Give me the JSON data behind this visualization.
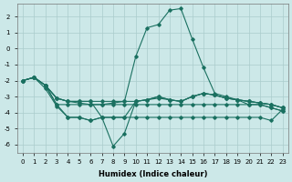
{
  "xlabel": "Humidex (Indice chaleur)",
  "bg_color": "#cce8e8",
  "grid_color": "#aacccc",
  "line_color": "#1a7060",
  "xlim": [
    -0.5,
    23.5
  ],
  "ylim": [
    -6.5,
    2.8
  ],
  "xticks": [
    0,
    1,
    2,
    3,
    4,
    5,
    6,
    7,
    8,
    9,
    10,
    11,
    12,
    13,
    14,
    15,
    16,
    17,
    18,
    19,
    20,
    21,
    22,
    23
  ],
  "yticks": [
    -6,
    -5,
    -4,
    -3,
    -2,
    -1,
    0,
    1,
    2
  ],
  "lines": [
    {
      "x": [
        0,
        1,
        2,
        3,
        4,
        5,
        6,
        7,
        8,
        9,
        10,
        11,
        12,
        13,
        14,
        15,
        16,
        17,
        18,
        19,
        20,
        21,
        22,
        23
      ],
      "y": [
        -2.0,
        -1.8,
        -2.3,
        -3.1,
        -3.3,
        -3.4,
        -3.5,
        -3.5,
        -3.4,
        -3.3,
        -3.3,
        -3.2,
        -3.1,
        -3.2,
        -3.3,
        -3.0,
        -2.8,
        -2.9,
        -3.1,
        -3.2,
        -3.3,
        -3.4,
        -3.5,
        -3.7
      ]
    },
    {
      "x": [
        0,
        1,
        2,
        3,
        4,
        5,
        6,
        7,
        8,
        9,
        10,
        11,
        12,
        13,
        14,
        15,
        16,
        17,
        18,
        19,
        20,
        21,
        22,
        23
      ],
      "y": [
        -2.0,
        -1.8,
        -2.3,
        -3.5,
        -3.5,
        -3.5,
        -3.5,
        -3.5,
        -3.5,
        -3.5,
        -3.5,
        -3.5,
        -3.5,
        -3.5,
        -3.5,
        -3.5,
        -3.5,
        -3.5,
        -3.5,
        -3.5,
        -3.5,
        -3.5,
        -3.7,
        -3.9
      ]
    },
    {
      "x": [
        2,
        3,
        4,
        5,
        6,
        7,
        8,
        9,
        10,
        11,
        12,
        13,
        14,
        15,
        16,
        17,
        18,
        19,
        20,
        21,
        22,
        23
      ],
      "y": [
        -2.3,
        -3.5,
        -4.3,
        -4.3,
        -4.5,
        -4.3,
        -4.3,
        -4.3,
        -4.3,
        -4.3,
        -4.3,
        -4.3,
        -4.3,
        -4.3,
        -4.3,
        -4.3,
        -4.3,
        -4.3,
        -4.3,
        -4.3,
        -4.5,
        -3.8
      ]
    },
    {
      "x": [
        0,
        1,
        2,
        3,
        4,
        5,
        6,
        7,
        8,
        9,
        10,
        11,
        12,
        13,
        14,
        15,
        16,
        17,
        18,
        19,
        20,
        21,
        22,
        23
      ],
      "y": [
        -2.0,
        -1.8,
        -2.5,
        -3.6,
        -4.3,
        -4.3,
        -4.5,
        -4.3,
        -4.3,
        -4.3,
        -3.3,
        -3.2,
        -3.0,
        -3.2,
        -3.3,
        -3.0,
        -2.8,
        -2.9,
        -3.1,
        -3.2,
        -3.5,
        -3.5,
        -3.7,
        -3.9
      ]
    },
    {
      "x": [
        0,
        1,
        2,
        3,
        4,
        5,
        6,
        7,
        8,
        9,
        10,
        11,
        12,
        13,
        14,
        15,
        16,
        17,
        18,
        19,
        20,
        21,
        22,
        23
      ],
      "y": [
        -2.0,
        -1.8,
        -2.3,
        -3.1,
        -3.3,
        -3.3,
        -3.3,
        -4.3,
        -6.1,
        -5.3,
        -3.3,
        -3.2,
        -3.0,
        -3.2,
        -3.3,
        -3.0,
        -2.8,
        -2.9,
        -3.1,
        -3.2,
        -3.3,
        -3.4,
        -3.5,
        -3.7
      ]
    },
    {
      "x": [
        0,
        1,
        2,
        3,
        4,
        5,
        6,
        7,
        8,
        9,
        10,
        11,
        12,
        13,
        14,
        15,
        16,
        17,
        18,
        19,
        20,
        21,
        22,
        23
      ],
      "y": [
        -2.0,
        -1.8,
        -2.3,
        -3.1,
        -3.3,
        -3.3,
        -3.3,
        -3.3,
        -3.3,
        -3.3,
        -0.5,
        1.3,
        1.5,
        2.4,
        2.5,
        0.6,
        -1.2,
        -2.8,
        -3.0,
        -3.2,
        -3.3,
        -3.4,
        -3.5,
        -3.7
      ]
    }
  ]
}
